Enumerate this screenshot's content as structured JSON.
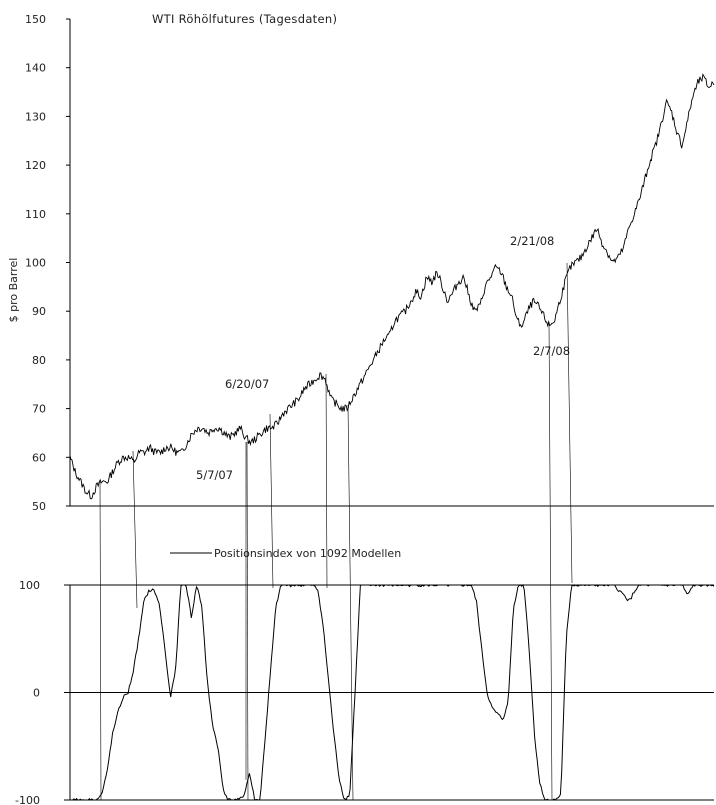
{
  "chart_data": [
    {
      "type": "line",
      "title": "WTI Röhölfutures (Tagesdaten)",
      "ylabel": "$ pro Barrel",
      "ylim": [
        50,
        150
      ],
      "yticks": [
        "150",
        "140",
        "130",
        "120",
        "110",
        "100",
        "90",
        "80",
        "70",
        "60",
        "50"
      ],
      "grid": false,
      "annotations": [
        {
          "text": "6/20/07"
        },
        {
          "text": "5/7/07"
        },
        {
          "text": "2/21/08"
        },
        {
          "text": "2/7/08"
        }
      ],
      "series": [
        {
          "values": [
            60,
            57,
            55,
            53,
            52,
            54,
            55,
            55,
            57,
            59,
            60,
            60,
            59,
            61,
            61,
            62,
            61,
            61,
            62,
            62,
            61,
            61,
            63,
            65,
            66,
            66,
            65,
            66,
            66,
            65,
            64,
            65,
            66,
            64,
            63,
            64,
            65,
            66,
            66,
            67,
            69,
            70,
            71,
            72,
            74,
            75,
            76,
            77,
            76,
            72,
            71,
            70,
            70,
            72,
            74,
            76,
            78,
            80,
            82,
            84,
            85,
            88,
            89,
            90,
            92,
            94,
            93,
            97,
            96,
            98,
            95,
            92,
            94,
            96,
            97,
            93,
            90,
            91,
            95,
            97,
            99,
            98,
            95,
            93,
            88,
            87,
            90,
            92,
            91,
            89,
            87,
            88,
            92,
            96,
            99,
            100,
            101,
            103,
            105,
            107,
            104,
            102,
            100,
            101,
            103,
            107,
            110,
            113,
            117,
            121,
            124,
            128,
            133,
            131,
            127,
            124,
            129,
            134,
            137,
            138,
            136,
            137
          ]
        }
      ]
    },
    {
      "type": "line",
      "ylim": [
        -100,
        100
      ],
      "yticks": [
        "100",
        "0",
        "-100"
      ],
      "grid": false,
      "series": [
        {
          "name": "Positionsindex von 1092 Modellen",
          "values": [
            -100,
            -100,
            -100,
            -100,
            -100,
            -100,
            -95,
            -75,
            -40,
            -20,
            -5,
            0,
            20,
            50,
            85,
            95,
            95,
            80,
            40,
            -5,
            20,
            100,
            100,
            70,
            100,
            80,
            10,
            -30,
            -50,
            -90,
            -100,
            -100,
            -100,
            -95,
            -75,
            -100,
            -100,
            -40,
            20,
            80,
            100,
            100,
            100,
            100,
            100,
            100,
            100,
            95,
            60,
            10,
            -40,
            -80,
            -100,
            -95,
            0,
            100,
            100,
            100,
            100,
            100,
            100,
            100,
            100,
            100,
            100,
            100,
            100,
            100,
            100,
            100,
            100,
            100,
            100,
            100,
            100,
            100,
            100,
            85,
            40,
            0,
            -15,
            -20,
            -25,
            -10,
            80,
            100,
            100,
            40,
            -40,
            -85,
            -100,
            -100,
            -100,
            -95,
            50,
            100,
            100,
            100,
            100,
            100,
            100,
            100,
            100,
            100,
            95,
            90,
            85,
            95,
            100,
            100,
            100,
            100,
            100,
            100,
            100,
            100,
            100,
            90,
            100,
            100,
            100,
            100,
            100
          ]
        }
      ]
    }
  ]
}
